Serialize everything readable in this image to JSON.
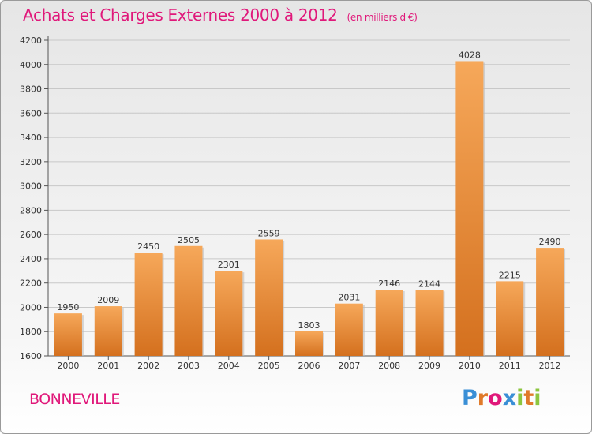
{
  "title": "Achats et Charges Externes 2000 à 2012",
  "subtitle": "(en milliers d'€)",
  "commune": "BONNEVILLE",
  "logo": {
    "text": "Proxiti",
    "letters": [
      "P",
      "r",
      "o",
      "x",
      "i",
      "t",
      "i"
    ],
    "colors": [
      "#3a8fd6",
      "#e07a2a",
      "#e0187a",
      "#3a8fd6",
      "#8cc63f",
      "#e07a2a",
      "#8cc63f"
    ]
  },
  "colors": {
    "bar_light": "#f6a85a",
    "bar_dark": "#d4701e",
    "title": "#e0187a",
    "grid": "#c8c8c8"
  },
  "chart_data": {
    "type": "bar",
    "categories": [
      "2000",
      "2001",
      "2002",
      "2003",
      "2004",
      "2005",
      "2006",
      "2007",
      "2008",
      "2009",
      "2010",
      "2011",
      "2012"
    ],
    "values": [
      1950,
      2009,
      2450,
      2505,
      2301,
      2559,
      1803,
      2031,
      2146,
      2144,
      4028,
      2215,
      2490
    ],
    "yticks": [
      1600,
      1800,
      2000,
      2200,
      2400,
      2600,
      2800,
      3000,
      3200,
      3400,
      3600,
      3800,
      4000,
      4200
    ],
    "ylim": [
      1600,
      4200
    ],
    "grid": true,
    "legend": "none"
  }
}
